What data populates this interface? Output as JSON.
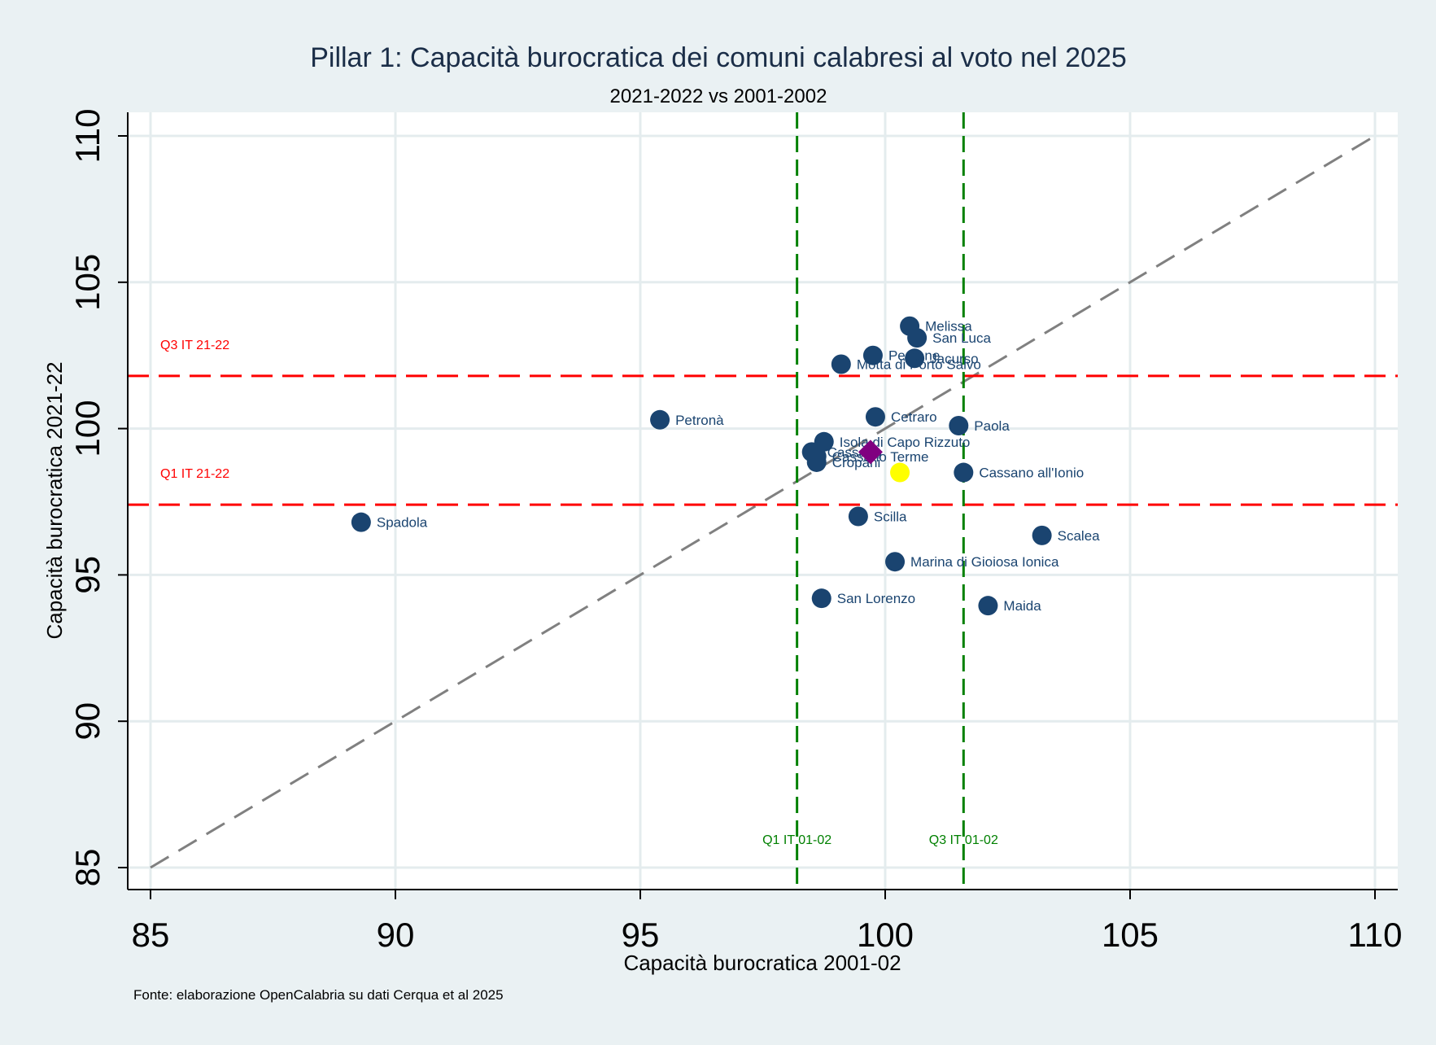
{
  "chart_data": {
    "type": "scatter",
    "title": "Pillar 1: Capacità burocratica dei comuni calabresi al voto nel 2025",
    "subtitle": "2021-2022 vs 2001-2002",
    "xlabel": "Capacità burocratica 2001-02",
    "ylabel": "Capacità burocratica 2021-22",
    "note": "Fonte: elaborazione OpenCalabria su dati Cerqua et al 2025",
    "xlim": [
      85,
      110
    ],
    "ylim": [
      85,
      110
    ],
    "xticks": [
      85,
      90,
      95,
      100,
      105,
      110
    ],
    "yticks": [
      85,
      90,
      95,
      100,
      105,
      110
    ],
    "grid": true,
    "colors": {
      "points": "#1a4470",
      "diagonal": "#808080",
      "q_2122": "#ff0000",
      "q_0102": "#008000",
      "highlight_diamond": "#800080",
      "highlight_circle": "#ffff00"
    },
    "points": [
      {
        "label": "Spadola",
        "x": 89.3,
        "y": 96.8
      },
      {
        "label": "Petronà",
        "x": 95.4,
        "y": 100.3
      },
      {
        "label": "Melissa",
        "x": 100.5,
        "y": 103.5
      },
      {
        "label": "San Luca",
        "x": 100.65,
        "y": 103.1
      },
      {
        "label": "Pentone",
        "x": 99.75,
        "y": 102.5
      },
      {
        "label": "Jacurso",
        "x": 100.6,
        "y": 102.4
      },
      {
        "label": "Motta di Porto Salvo",
        "x": 99.1,
        "y": 102.2
      },
      {
        "label": "Cetraro",
        "x": 99.8,
        "y": 100.4
      },
      {
        "label": "Paola",
        "x": 101.5,
        "y": 100.1
      },
      {
        "label": "Isola di Capo Rizzuto",
        "x": 98.75,
        "y": 99.55
      },
      {
        "label": "Cassano",
        "x": 98.5,
        "y": 99.2
      },
      {
        "label": "Cassano Terme",
        "x": 98.6,
        "y": 99.05
      },
      {
        "label": "Cropani",
        "x": 98.6,
        "y": 98.85
      },
      {
        "label": "Cassano all'Ionio",
        "x": 101.6,
        "y": 98.5
      },
      {
        "label": "Scilla",
        "x": 99.45,
        "y": 97.0
      },
      {
        "label": "Scalea",
        "x": 103.2,
        "y": 96.35
      },
      {
        "label": "Marina di Gioiosa Ionica",
        "x": 100.2,
        "y": 95.45
      },
      {
        "label": "San Lorenzo",
        "x": 98.7,
        "y": 94.2
      },
      {
        "label": "Maida",
        "x": 102.1,
        "y": 93.95
      }
    ],
    "highlights": [
      {
        "marker": "diamond",
        "x": 99.7,
        "y": 99.2
      },
      {
        "marker": "circle",
        "x": 100.3,
        "y": 98.5
      }
    ],
    "reference_lines": {
      "diagonal": {
        "style": "dashed",
        "from": [
          85,
          85
        ],
        "to": [
          110,
          110
        ]
      },
      "q3_2122": {
        "label": "Q3 IT 21-22",
        "y": 101.8
      },
      "q1_2122": {
        "label": "Q1 IT 21-22",
        "y": 97.4
      },
      "q1_0102": {
        "label": "Q1 IT 01-02",
        "x": 98.2
      },
      "q3_0102": {
        "label": "Q3 IT 01-02",
        "x": 101.6
      }
    }
  }
}
